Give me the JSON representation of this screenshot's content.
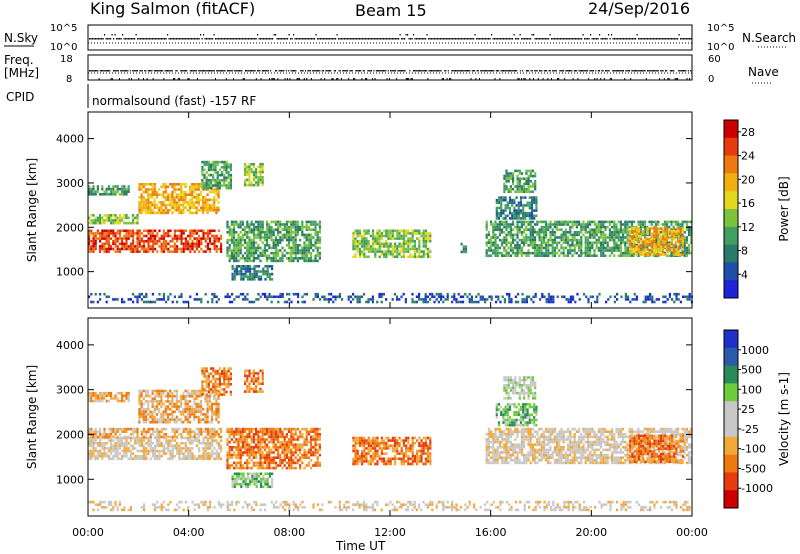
{
  "header": {
    "station": "King Salmon (fitACF)",
    "beam": "Beam 15",
    "date": "24/Sep/2016",
    "mode": "normalsound (fast) -157 RF"
  },
  "side_labels": {
    "nsky": "N.Sky",
    "freq_line1": "Freq.",
    "freq_line2": "[MHz]",
    "cpid": "CPID",
    "nsearch": "N.Search",
    "nave": "Nave"
  },
  "small_axes": {
    "nsky_ticks": [
      "10^5",
      "10^0"
    ],
    "nsearch_ticks": [
      "10^5",
      "10^0"
    ],
    "freq_ticks": [
      "18",
      "8"
    ],
    "nave_ticks": [
      "60",
      "0"
    ]
  },
  "chart_data": [
    {
      "type": "heatmap",
      "quantity": "Power",
      "colorbar_label": "Power [dB]",
      "colorbar_ticks": [
        "4",
        "8",
        "12",
        "16",
        "20",
        "24",
        "28"
      ],
      "colorbar_range": [
        0,
        30
      ],
      "colors": [
        "#1f23d8",
        "#1f50a8",
        "#2a7a6a",
        "#3fa060",
        "#7cc23c",
        "#e4d81c",
        "#f2b010",
        "#f07a10",
        "#e83c10",
        "#cc0000"
      ],
      "ylabel": "Slant Range [km]",
      "y_ticks": [
        "1000",
        "2000",
        "3000",
        "4000"
      ],
      "ylim": [
        180,
        4600
      ],
      "x_ticks": [
        "00:00",
        "04:00",
        "08:00",
        "12:00",
        "16:00",
        "20:00",
        "00:00"
      ],
      "xlim_hours": [
        0,
        24
      ],
      "regions": [
        {
          "t0": 0.0,
          "t1": 5.3,
          "r0": 1450,
          "r1": 1950,
          "level": 8
        },
        {
          "t0": 0.0,
          "t1": 2.0,
          "r0": 2100,
          "r1": 2300,
          "level": 4
        },
        {
          "t0": 0.0,
          "t1": 1.6,
          "r0": 2750,
          "r1": 2950,
          "level": 3
        },
        {
          "t0": 2.0,
          "t1": 5.2,
          "r0": 2300,
          "r1": 3000,
          "level": 6
        },
        {
          "t0": 4.5,
          "t1": 5.7,
          "r0": 2900,
          "r1": 3500,
          "level": 3
        },
        {
          "t0": 6.2,
          "t1": 6.9,
          "r0": 2950,
          "r1": 3450,
          "level": 4
        },
        {
          "t0": 5.5,
          "t1": 9.2,
          "r0": 1250,
          "r1": 2150,
          "level": 3
        },
        {
          "t0": 5.7,
          "t1": 7.3,
          "r0": 850,
          "r1": 1150,
          "level": 2
        },
        {
          "t0": 10.5,
          "t1": 13.6,
          "r0": 1350,
          "r1": 1950,
          "level": 4
        },
        {
          "t0": 14.8,
          "t1": 15.0,
          "r0": 1450,
          "r1": 1650,
          "level": 3
        },
        {
          "t0": 15.8,
          "t1": 24.0,
          "r0": 1350,
          "r1": 2150,
          "level": 3
        },
        {
          "t0": 16.2,
          "t1": 17.8,
          "r0": 2200,
          "r1": 2700,
          "level": 2
        },
        {
          "t0": 16.5,
          "t1": 17.8,
          "r0": 2800,
          "r1": 3300,
          "level": 3
        },
        {
          "t0": 21.5,
          "t1": 23.6,
          "r0": 1400,
          "r1": 2000,
          "level": 6
        },
        {
          "t0": 0.0,
          "t1": 24.0,
          "r0": 300,
          "r1": 520,
          "level": 1
        }
      ]
    },
    {
      "type": "heatmap",
      "quantity": "Velocity",
      "colorbar_label": "Velocity [m s-1]",
      "colorbar_ticks": [
        "1000",
        "500",
        "100",
        "25",
        "-25",
        "-100",
        "-500",
        "-1000"
      ],
      "colorbar_range": [
        -1000,
        1000
      ],
      "colors": [
        "#cc0000",
        "#e83c10",
        "#f07a10",
        "#f2a93a",
        "#c8c8c8",
        "#c8c8c8",
        "#6ccc3c",
        "#2a8a5a",
        "#2a5aaa",
        "#1f30c8"
      ],
      "ylabel": "Slant Range [km]",
      "y_ticks": [
        "1000",
        "2000",
        "3000",
        "4000"
      ],
      "ylim": [
        180,
        4600
      ],
      "x_ticks": [
        "00:00",
        "04:00",
        "08:00",
        "12:00",
        "16:00",
        "20:00",
        "00:00"
      ],
      "xlim_hours": [
        0,
        24
      ],
      "xlabel": "Time UT",
      "regions": [
        {
          "t0": 0.0,
          "t1": 5.3,
          "r0": 1450,
          "r1": 1950,
          "level": 4
        },
        {
          "t0": 0.0,
          "t1": 5.3,
          "r0": 1950,
          "r1": 2150,
          "level": 3
        },
        {
          "t0": 2.0,
          "t1": 5.2,
          "r0": 2300,
          "r1": 3000,
          "level": 3
        },
        {
          "t0": 0.0,
          "t1": 1.6,
          "r0": 2750,
          "r1": 2950,
          "level": 3
        },
        {
          "t0": 4.5,
          "t1": 5.7,
          "r0": 2900,
          "r1": 3500,
          "level": 2
        },
        {
          "t0": 6.2,
          "t1": 6.9,
          "r0": 2950,
          "r1": 3450,
          "level": 2
        },
        {
          "t0": 5.5,
          "t1": 9.2,
          "r0": 1250,
          "r1": 2150,
          "level": 2
        },
        {
          "t0": 5.7,
          "t1": 7.3,
          "r0": 850,
          "r1": 1150,
          "level": 6
        },
        {
          "t0": 10.5,
          "t1": 13.6,
          "r0": 1350,
          "r1": 1950,
          "level": 2
        },
        {
          "t0": 15.8,
          "t1": 24.0,
          "r0": 1350,
          "r1": 2150,
          "level": 4
        },
        {
          "t0": 21.5,
          "t1": 23.6,
          "r0": 1400,
          "r1": 2000,
          "level": 2
        },
        {
          "t0": 16.2,
          "t1": 17.8,
          "r0": 2200,
          "r1": 2700,
          "level": 6
        },
        {
          "t0": 16.5,
          "t1": 17.8,
          "r0": 2800,
          "r1": 3300,
          "level": 5
        },
        {
          "t0": 0.0,
          "t1": 24.0,
          "r0": 300,
          "r1": 520,
          "level": 4
        }
      ]
    }
  ]
}
